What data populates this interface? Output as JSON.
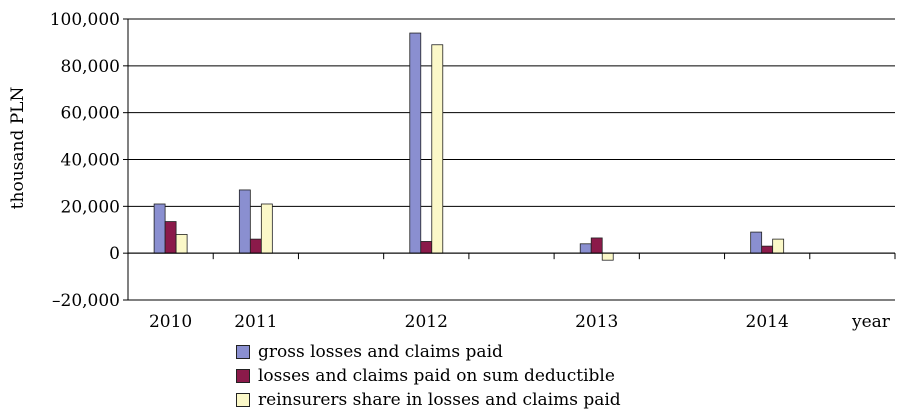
{
  "chart_data": {
    "type": "bar",
    "title": "",
    "ylabel": "thousand PLN",
    "xlabel": "year",
    "ylim": [
      -20000,
      100000
    ],
    "yticks": [
      -20000,
      0,
      20000,
      40000,
      60000,
      80000,
      100000
    ],
    "ytick_labels": [
      "–20,000",
      "0",
      "20,000",
      "40,000",
      "60,000",
      "80,000",
      "100,000"
    ],
    "grid": true,
    "legend_position": "bottom",
    "categories": [
      "2010",
      "2011",
      "",
      "2012",
      "",
      "2013",
      "",
      "2014",
      ""
    ],
    "series": [
      {
        "name": "gross losses and claims paid",
        "color": "#8a8fd0",
        "values": [
          21000,
          27000,
          null,
          94000,
          null,
          4000,
          null,
          9000,
          null
        ]
      },
      {
        "name": "losses and claims paid on sum deductible",
        "color": "#8b1a4a",
        "values": [
          13500,
          6000,
          null,
          5000,
          null,
          6500,
          null,
          3000,
          null
        ]
      },
      {
        "name": "reinsurers share in losses and claims paid",
        "color": "#fbf8c8",
        "values": [
          8000,
          21000,
          null,
          89000,
          null,
          -3000,
          null,
          6000,
          null
        ]
      }
    ]
  }
}
